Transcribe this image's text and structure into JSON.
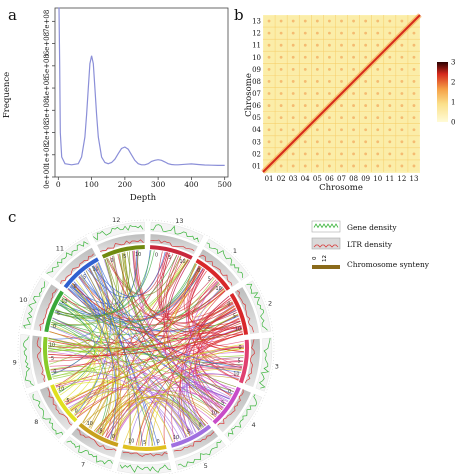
{
  "panels": {
    "a": "a",
    "b": "b",
    "c": "c"
  },
  "chart_data": [
    {
      "type": "line",
      "panel": "a",
      "xlabel": "Depth",
      "ylabel": "Frequence",
      "xlim": [
        -10,
        510
      ],
      "ylim": [
        0,
        760000000.0
      ],
      "xticks": [
        0,
        100,
        200,
        300,
        400,
        500
      ],
      "xtick_labels": [
        "0",
        "100",
        "200",
        "300",
        "400",
        "500"
      ],
      "yticks": [
        0,
        100000000.0,
        200000000.0,
        300000000.0,
        400000000.0,
        500000000.0,
        600000000.0,
        700000000.0
      ],
      "ytick_labels": [
        "0e+00",
        "1e+08",
        "2e+08",
        "3e+08",
        "4e+08",
        "5e+08",
        "6e+08",
        "7e+08"
      ],
      "color": "#8b8fd8",
      "x": [
        0,
        2,
        4,
        6,
        10,
        20,
        40,
        60,
        70,
        80,
        85,
        90,
        95,
        100,
        105,
        110,
        115,
        120,
        130,
        140,
        150,
        160,
        170,
        180,
        190,
        200,
        210,
        220,
        230,
        240,
        250,
        260,
        270,
        280,
        290,
        300,
        310,
        320,
        330,
        340,
        350,
        360,
        380,
        400,
        420,
        440,
        460,
        480,
        500
      ],
      "y": [
        760000000.0,
        760000000.0,
        500000000.0,
        200000000.0,
        90000000.0,
        60000000.0,
        55000000.0,
        60000000.0,
        90000000.0,
        180000000.0,
        280000000.0,
        400000000.0,
        510000000.0,
        545000000.0,
        510000000.0,
        400000000.0,
        280000000.0,
        180000000.0,
        90000000.0,
        65000000.0,
        60000000.0,
        65000000.0,
        80000000.0,
        105000000.0,
        128000000.0,
        135000000.0,
        125000000.0,
        100000000.0,
        75000000.0,
        60000000.0,
        55000000.0,
        55000000.0,
        60000000.0,
        70000000.0,
        75000000.0,
        78000000.0,
        75000000.0,
        68000000.0,
        60000000.0,
        56000000.0,
        55000000.0,
        55000000.0,
        57000000.0,
        59000000.0,
        56000000.0,
        54000000.0,
        53000000.0,
        52000000.0,
        52000000.0
      ]
    },
    {
      "type": "heatmap",
      "panel": "b",
      "xlabel": "Chrosome",
      "ylabel": "Chrosome",
      "categories": [
        "01",
        "02",
        "03",
        "04",
        "05",
        "06",
        "07",
        "08",
        "09",
        "10",
        "11",
        "12",
        "13"
      ],
      "scale_range": [
        0,
        3
      ],
      "scale_ticks": [
        "0",
        "1",
        "2",
        "3"
      ],
      "colors": [
        "#fffbd6",
        "#fbe08a",
        "#f5a046",
        "#d62a1e",
        "#2a0000"
      ],
      "note": "strong diagonal (intra-chromosomal) signal, faint inter-chromosomal blocks"
    },
    {
      "type": "circos",
      "panel": "c",
      "chromosome_labels": [
        "1",
        "2",
        "3",
        "4",
        "5",
        "6",
        "7",
        "8",
        "9",
        "10",
        "11",
        "12",
        "13"
      ],
      "ring_tick_labels": [
        "0",
        "5",
        "10",
        "15",
        "20",
        "25",
        "30",
        "35",
        "40"
      ],
      "legend": [
        {
          "label": "Gene density",
          "color": "#3cb43c"
        },
        {
          "label": "LTR density",
          "color": "#d83a3a"
        },
        {
          "label": "Chromosome synteny",
          "color": "#8a6a1a",
          "scale_labels": [
            "0",
            "12"
          ]
        }
      ]
    }
  ]
}
